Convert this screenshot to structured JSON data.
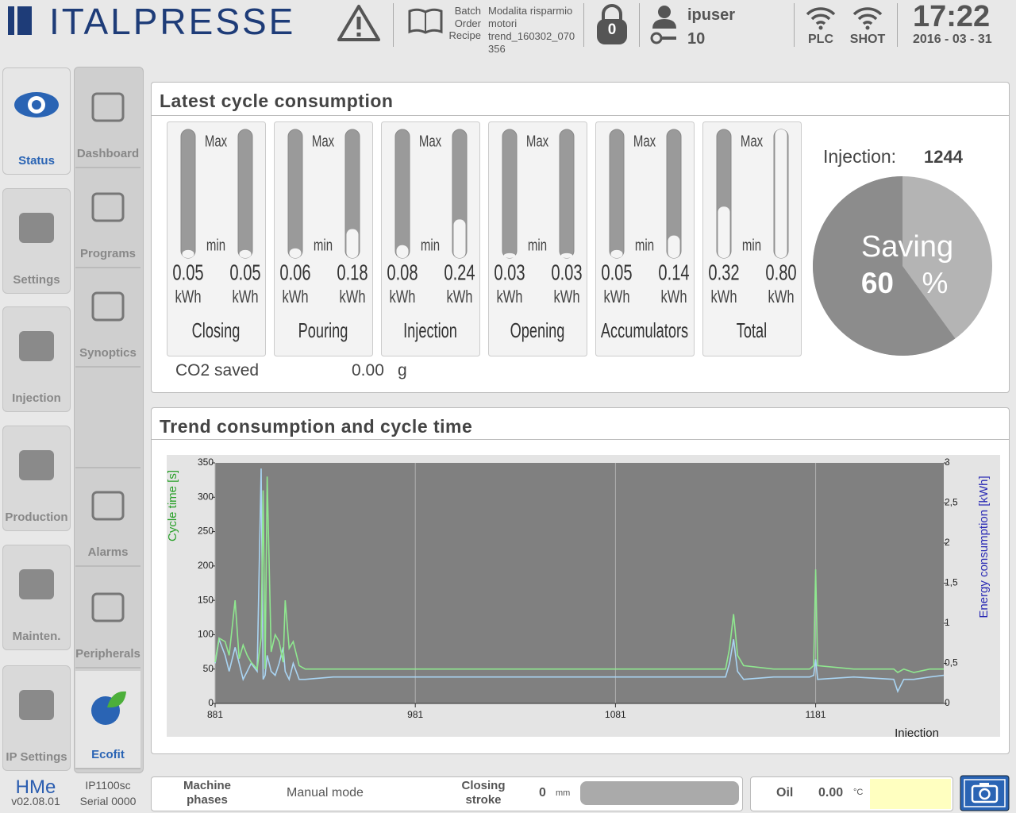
{
  "header": {
    "logo": "ITALPRESSE",
    "batch_label": "Batch",
    "order_label": "Order",
    "recipe_label": "Recipe",
    "batch": "Modalita risparmio motori",
    "recipe": "trend_160302_070356",
    "lock_count": 0,
    "user": "ipuser",
    "user_level": 10,
    "plc": "PLC",
    "shot": "SHOT",
    "time": "17:22",
    "date": "2016 - 03 - 31"
  },
  "nav_left": [
    "Status",
    "Settings",
    "Injection",
    "Production",
    "Mainten.",
    "IP Settings"
  ],
  "nav_right": [
    "Dashboard",
    "Programs",
    "Synoptics",
    "Alarms",
    "Peripherals",
    "Ecofit"
  ],
  "footer_left": {
    "brand": "HMe",
    "version": "v02.08.01",
    "model": "IP1100sc",
    "serial": "Serial 0000"
  },
  "consumption": {
    "title": "Latest cycle consumption",
    "max_label": "Max",
    "min_label": "min",
    "unit": "kWh",
    "gauges": [
      {
        "name": "Closing",
        "values": [
          0.05,
          0.05
        ],
        "value_labels": [
          "0.05",
          "0.05"
        ]
      },
      {
        "name": "Pouring",
        "values": [
          0.06,
          0.18
        ],
        "value_labels": [
          "0.06",
          "0.18"
        ]
      },
      {
        "name": "Injection",
        "values": [
          0.08,
          0.24
        ],
        "value_labels": [
          "0.08",
          "0.24"
        ]
      },
      {
        "name": "Opening",
        "values": [
          0.03,
          0.03
        ],
        "value_labels": [
          "0.03",
          "0.03"
        ]
      },
      {
        "name": "Accumulators",
        "values": [
          0.05,
          0.14
        ],
        "value_labels": [
          "0.05",
          "0.14"
        ]
      },
      {
        "name": "Total",
        "values": [
          0.32,
          0.8
        ],
        "value_labels": [
          "0.32",
          "0.80"
        ]
      }
    ],
    "co2_label": "CO2 saved",
    "co2_value": "0.00",
    "co2_unit": "g",
    "injection_label": "Injection:",
    "injection": 1244,
    "saving_label": "Saving",
    "saving": 60,
    "saving_unit": "%"
  },
  "status_bar": {
    "phases_label": "Machine phases",
    "mode": "Manual mode",
    "stroke_label": "Closing stroke",
    "stroke": 0,
    "stroke_unit": "mm",
    "oil_label": "Oil",
    "oil": "0.00",
    "oil_unit": "°C"
  },
  "chart_data": {
    "type": "line",
    "title": "Trend consumption and cycle time",
    "xlabel": "Injection",
    "ylabel": "Cycle time [s]",
    "y2label": "Energy consumption [kWh]",
    "xlim": [
      881,
      1245
    ],
    "xticks": [
      881,
      981,
      1081,
      1181
    ],
    "ylim": [
      0,
      350
    ],
    "yticks": [
      0,
      50,
      100,
      150,
      200,
      250,
      300,
      350
    ],
    "y2lim": [
      0,
      3
    ],
    "y2ticks": [
      0,
      {
        "value": 0.5,
        "label": "0,5"
      },
      1,
      {
        "value": 1.5,
        "label": "1,5"
      },
      2,
      {
        "value": 2.5,
        "label": "2,5"
      },
      3
    ],
    "xgrid": true,
    "x": [
      881,
      883,
      886,
      888,
      891,
      893,
      895,
      897,
      899,
      902,
      904,
      905,
      906,
      907,
      909,
      911,
      913,
      915,
      916,
      918,
      920,
      923,
      926,
      940,
      980,
      1020,
      1080,
      1130,
      1136,
      1138,
      1140,
      1142,
      1145,
      1160,
      1178,
      1180,
      1181,
      1182,
      1200,
      1220,
      1222,
      1225,
      1230,
      1238,
      1245
    ],
    "series": [
      {
        "color": "#8fe88f",
        "values": [
          60,
          95,
          90,
          70,
          150,
          65,
          85,
          70,
          60,
          50,
          95,
          310,
          50,
          330,
          75,
          100,
          90,
          60,
          150,
          80,
          90,
          55,
          50,
          50,
          50,
          50,
          50,
          50,
          50,
          80,
          130,
          70,
          55,
          50,
          50,
          55,
          195,
          55,
          50,
          50,
          45,
          50,
          45,
          50,
          50
        ]
      },
      {
        "color": "#a9d4f2",
        "axis": "y2",
        "values": [
          0.5,
          0.8,
          0.6,
          0.4,
          0.7,
          0.5,
          0.3,
          0.4,
          0.5,
          0.4,
          2.93,
          0.3,
          0.35,
          0.6,
          0.4,
          0.35,
          0.5,
          0.7,
          0.4,
          0.3,
          0.5,
          0.3,
          0.3,
          0.33,
          0.33,
          0.33,
          0.33,
          0.33,
          0.33,
          0.5,
          0.8,
          0.4,
          0.3,
          0.33,
          0.33,
          0.35,
          0.55,
          0.3,
          0.33,
          0.3,
          0.15,
          0.3,
          0.3,
          0.33,
          0.35
        ]
      }
    ]
  }
}
